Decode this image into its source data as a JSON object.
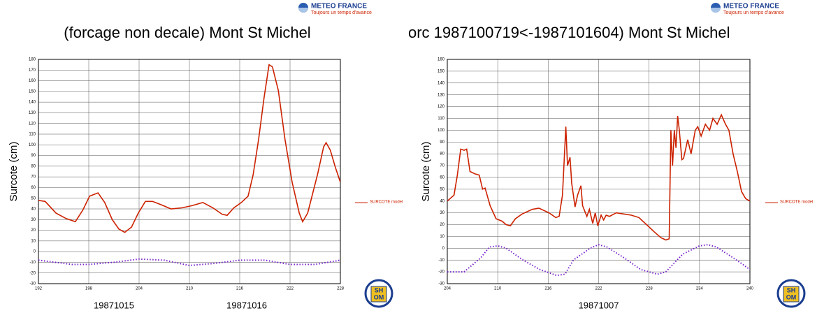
{
  "logos": {
    "meteo": "METEO FRANCE",
    "tagline": "Toujours un temps d'avance",
    "shom": [
      "SH",
      "OM"
    ]
  },
  "chart_data": [
    {
      "type": "line",
      "title": "(forcage non decale) Mont St Michel",
      "ylabel": "Surcote (cm)",
      "date_labels": [
        "19871015",
        "19871016"
      ],
      "xlim": [
        192,
        228
      ],
      "xticks": [
        192,
        198,
        204,
        210,
        216,
        222,
        228
      ],
      "ylim": [
        -30,
        180
      ],
      "yticks": [
        -30,
        -20,
        -10,
        0,
        10,
        20,
        30,
        40,
        50,
        60,
        70,
        80,
        90,
        100,
        110,
        120,
        130,
        140,
        150,
        160,
        170,
        180
      ],
      "grid": true,
      "legend": "right",
      "series": [
        {
          "name": "SURCOTE model",
          "color": "#cc2200",
          "style": "solid",
          "x": [
            192,
            192.8,
            194.1,
            195.3,
            196.4,
            197.3,
            198.1,
            199.1,
            199.9,
            200.8,
            201.6,
            202.3,
            203.1,
            203.9,
            204.75,
            205.6,
            206.6,
            207.8,
            209.1,
            210.3,
            211.6,
            212.8,
            213.9,
            214.5,
            215.3,
            216.2,
            217,
            217.6,
            218.25,
            218.9,
            219.5,
            219.9,
            220.6,
            221.4,
            222.25,
            223.1,
            223.5,
            224.1,
            224.75,
            225.3,
            226,
            226.3,
            226.8,
            227.4,
            228
          ],
          "values": [
            48,
            47,
            36,
            31,
            28,
            39,
            52,
            55,
            46,
            30,
            21,
            18,
            23,
            36,
            47,
            47,
            44,
            40,
            41,
            43,
            46,
            41,
            35,
            34,
            41,
            46,
            52,
            72,
            105,
            144,
            175,
            173,
            151,
            105,
            65,
            36,
            28,
            36,
            56,
            73,
            98,
            102,
            95,
            79,
            65
          ]
        },
        {
          "color": "#7722cc",
          "style": "dotted",
          "x": [
            192,
            196,
            198,
            201,
            204,
            207,
            210,
            213,
            216,
            219,
            222,
            225,
            228
          ],
          "values": [
            -8,
            -12,
            -12,
            -10,
            -7,
            -8,
            -13,
            -11,
            -8,
            -8,
            -12,
            -12,
            -8
          ]
        }
      ]
    },
    {
      "type": "line",
      "title": "orc 1987100719<-1987101604) Mont St Michel",
      "ylabel": "Surcote (cm)",
      "date_labels": [
        "19871007"
      ],
      "xlim": [
        204,
        240
      ],
      "xticks": [
        204,
        210,
        216,
        222,
        228,
        234,
        240
      ],
      "ylim": [
        -30,
        160
      ],
      "yticks": [
        -30,
        -20,
        -10,
        0,
        10,
        20,
        30,
        40,
        50,
        60,
        70,
        80,
        90,
        100,
        110,
        120,
        130,
        140,
        150,
        160
      ],
      "grid": true,
      "legend": "right",
      "series": [
        {
          "name": "SURCOTE model",
          "color": "#cc2200",
          "style": "solid",
          "x": [
            204,
            204.8,
            205.2,
            205.6,
            206,
            206.3,
            206.7,
            207.3,
            207.8,
            208.2,
            208.5,
            209.1,
            209.8,
            210.5,
            211,
            211.5,
            212.1,
            212.9,
            214.1,
            214.9,
            216.1,
            216.9,
            217.3,
            217.7,
            218.1,
            218.3,
            218.6,
            218.8,
            219.2,
            219.5,
            219.9,
            220.1,
            220.6,
            220.9,
            221.3,
            221.6,
            221.9,
            222.3,
            222.6,
            222.9,
            223.3,
            224.1,
            225,
            225.9,
            226.8,
            227.7,
            228.6,
            229.4,
            230,
            230.4,
            230.6,
            230.8,
            231,
            231.2,
            231.4,
            231.6,
            231.9,
            232.1,
            232.6,
            233,
            233.5,
            233.8,
            234.2,
            234.7,
            235.2,
            235.6,
            236.1,
            236.6,
            237.1,
            237.5,
            238,
            238.5,
            239,
            239.5,
            240
          ],
          "values": [
            40,
            45,
            62,
            84,
            83,
            84,
            65,
            63,
            62,
            50,
            51,
            36,
            25,
            23,
            20,
            19,
            25,
            29,
            33,
            34,
            30,
            26,
            27,
            45,
            103,
            70,
            77,
            55,
            35,
            45,
            53,
            36,
            27,
            33,
            21,
            30,
            19,
            28,
            24,
            28,
            27,
            30,
            29,
            28,
            26,
            20,
            14,
            9,
            7,
            8,
            100,
            70,
            100,
            85,
            112,
            100,
            75,
            76,
            92,
            80,
            100,
            103,
            95,
            105,
            100,
            110,
            105,
            113,
            105,
            100,
            80,
            65,
            48,
            42,
            40
          ]
        },
        {
          "color": "#7722cc",
          "style": "dotted",
          "x": [
            204,
            206,
            208,
            209,
            210,
            211,
            213,
            215,
            217,
            218,
            219,
            221,
            222,
            223,
            225,
            227,
            229,
            230,
            232,
            234,
            235,
            236,
            238,
            240
          ],
          "values": [
            -20,
            -20,
            -8,
            1,
            2,
            0,
            -10,
            -18,
            -23,
            -22,
            -10,
            0,
            3,
            1,
            -8,
            -18,
            -22,
            -20,
            -5,
            2,
            3,
            1,
            -8,
            -18
          ]
        }
      ]
    }
  ]
}
